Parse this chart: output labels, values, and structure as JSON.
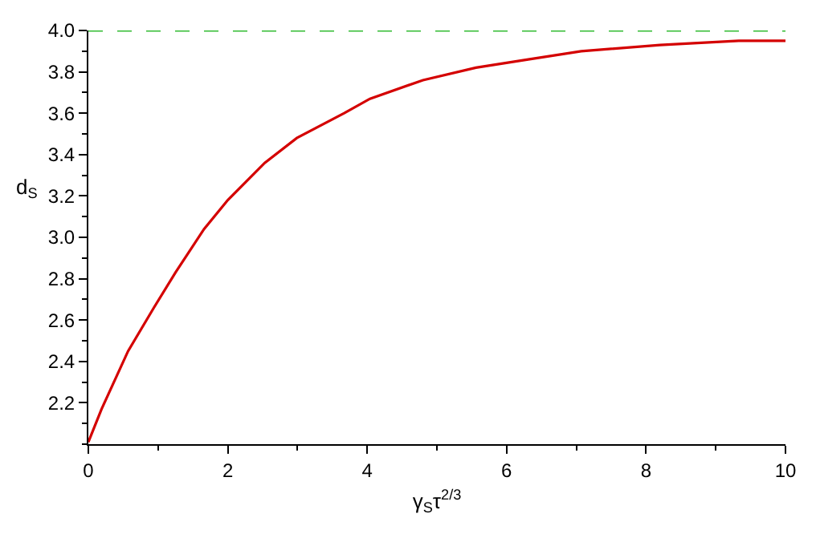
{
  "chart_data": {
    "type": "line",
    "xlabel": "γ$_{S}$τ$^{2/3}$",
    "ylabel": "d$_{S}$",
    "x": [
      0,
      0.19,
      0.57,
      0.94,
      1.25,
      1.66,
      2.0,
      2.53,
      2.99,
      3.67,
      4.04,
      4.8,
      5.56,
      6.31,
      7.07,
      8.2,
      9.33,
      10
    ],
    "series": [
      {
        "color": "#d40000",
        "values": [
          2.01,
          2.17,
          2.45,
          2.66,
          2.83,
          3.04,
          3.18,
          3.36,
          3.48,
          3.6,
          3.67,
          3.76,
          3.82,
          3.86,
          3.9,
          3.93,
          3.95,
          3.95
        ]
      }
    ],
    "xlim": [
      0,
      10
    ],
    "xticks": [
      0,
      2,
      4,
      6,
      8,
      10
    ],
    "ylim": [
      2.0,
      4.0
    ],
    "yticks": [
      {
        "value": 2.2,
        "label": "2.2"
      },
      {
        "value": 2.4,
        "label": "2.4"
      },
      {
        "value": 2.6,
        "label": "2.6"
      },
      {
        "value": 2.8,
        "label": "2.8"
      },
      {
        "value": 3.0,
        "label": "3.0"
      },
      {
        "value": 3.2,
        "label": "3.2"
      },
      {
        "value": 3.4,
        "label": "3.4"
      },
      {
        "value": 3.6,
        "label": "3.6"
      },
      {
        "value": 3.8,
        "label": "3.8"
      },
      {
        "value": 4.0,
        "label": "4.0"
      }
    ],
    "ref_lines": [
      {
        "axis": "y",
        "value": 4.0,
        "label": null,
        "color": "#33bb33",
        "line_style": "dashed"
      }
    ],
    "line_style": "solid",
    "marker": "none"
  }
}
